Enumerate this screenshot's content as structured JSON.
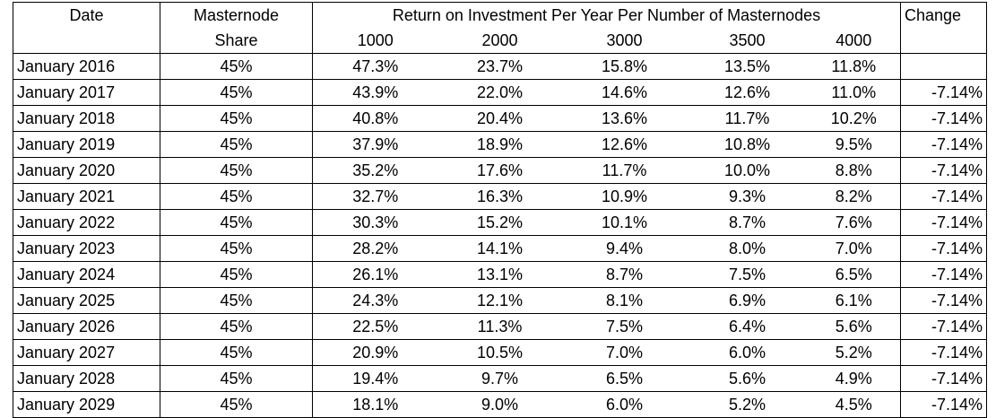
{
  "table": {
    "headers": {
      "date": "Date",
      "share_line1": "Masternode",
      "share_line2": "Share",
      "roi_group": "Return on Investment Per Year Per Number of Masternodes",
      "change": "Change",
      "counts": [
        "1000",
        "2000",
        "3000",
        "3500",
        "4000"
      ]
    },
    "rows": [
      {
        "date": "January 2016",
        "share": "45%",
        "r1000": "47.3%",
        "r2000": "23.7%",
        "r3000": "15.8%",
        "r3500": "13.5%",
        "r4000": "11.8%",
        "change": ""
      },
      {
        "date": "January 2017",
        "share": "45%",
        "r1000": "43.9%",
        "r2000": "22.0%",
        "r3000": "14.6%",
        "r3500": "12.6%",
        "r4000": "11.0%",
        "change": "-7.14%"
      },
      {
        "date": "January 2018",
        "share": "45%",
        "r1000": "40.8%",
        "r2000": "20.4%",
        "r3000": "13.6%",
        "r3500": "11.7%",
        "r4000": "10.2%",
        "change": "-7.14%"
      },
      {
        "date": "January 2019",
        "share": "45%",
        "r1000": "37.9%",
        "r2000": "18.9%",
        "r3000": "12.6%",
        "r3500": "10.8%",
        "r4000": "9.5%",
        "change": "-7.14%"
      },
      {
        "date": "January 2020",
        "share": "45%",
        "r1000": "35.2%",
        "r2000": "17.6%",
        "r3000": "11.7%",
        "r3500": "10.0%",
        "r4000": "8.8%",
        "change": "-7.14%"
      },
      {
        "date": "January 2021",
        "share": "45%",
        "r1000": "32.7%",
        "r2000": "16.3%",
        "r3000": "10.9%",
        "r3500": "9.3%",
        "r4000": "8.2%",
        "change": "-7.14%"
      },
      {
        "date": "January 2022",
        "share": "45%",
        "r1000": "30.3%",
        "r2000": "15.2%",
        "r3000": "10.1%",
        "r3500": "8.7%",
        "r4000": "7.6%",
        "change": "-7.14%"
      },
      {
        "date": "January 2023",
        "share": "45%",
        "r1000": "28.2%",
        "r2000": "14.1%",
        "r3000": "9.4%",
        "r3500": "8.0%",
        "r4000": "7.0%",
        "change": "-7.14%"
      },
      {
        "date": "January 2024",
        "share": "45%",
        "r1000": "26.1%",
        "r2000": "13.1%",
        "r3000": "8.7%",
        "r3500": "7.5%",
        "r4000": "6.5%",
        "change": "-7.14%"
      },
      {
        "date": "January 2025",
        "share": "45%",
        "r1000": "24.3%",
        "r2000": "12.1%",
        "r3000": "8.1%",
        "r3500": "6.9%",
        "r4000": "6.1%",
        "change": "-7.14%"
      },
      {
        "date": "January 2026",
        "share": "45%",
        "r1000": "22.5%",
        "r2000": "11.3%",
        "r3000": "7.5%",
        "r3500": "6.4%",
        "r4000": "5.6%",
        "change": "-7.14%"
      },
      {
        "date": "January 2027",
        "share": "45%",
        "r1000": "20.9%",
        "r2000": "10.5%",
        "r3000": "7.0%",
        "r3500": "6.0%",
        "r4000": "5.2%",
        "change": "-7.14%"
      },
      {
        "date": "January 2028",
        "share": "45%",
        "r1000": "19.4%",
        "r2000": "9.7%",
        "r3000": "6.5%",
        "r3500": "5.6%",
        "r4000": "4.9%",
        "change": "-7.14%"
      },
      {
        "date": "January 2029",
        "share": "45%",
        "r1000": "18.1%",
        "r2000": "9.0%",
        "r3000": "6.0%",
        "r3500": "5.2%",
        "r4000": "4.5%",
        "change": "-7.14%"
      }
    ]
  }
}
